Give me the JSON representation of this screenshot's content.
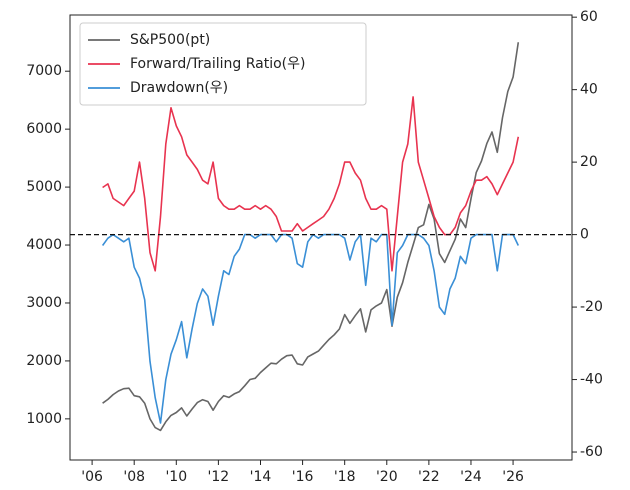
{
  "chart_data": {
    "type": "line",
    "x": [
      2006.5,
      2006.75,
      2007,
      2007.25,
      2007.5,
      2007.75,
      2008,
      2008.25,
      2008.5,
      2008.75,
      2009,
      2009.25,
      2009.5,
      2009.75,
      2010,
      2010.25,
      2010.5,
      2010.75,
      2011,
      2011.25,
      2011.5,
      2011.75,
      2012,
      2012.25,
      2012.5,
      2012.75,
      2013,
      2013.25,
      2013.5,
      2013.75,
      2014,
      2014.25,
      2014.5,
      2014.75,
      2015,
      2015.25,
      2015.5,
      2015.75,
      2016,
      2016.25,
      2016.5,
      2016.75,
      2017,
      2017.25,
      2017.5,
      2017.75,
      2018,
      2018.25,
      2018.5,
      2018.75,
      2019,
      2019.25,
      2019.5,
      2019.75,
      2020,
      2020.25,
      2020.5,
      2020.75,
      2021,
      2021.25,
      2021.5,
      2021.75,
      2022,
      2022.25,
      2022.5,
      2022.75,
      2023,
      2023.25,
      2023.5,
      2023.75,
      2024,
      2024.25,
      2024.5,
      2024.75,
      2025,
      2025.25,
      2025.5,
      2025.75,
      2026,
      2026.25
    ],
    "series": [
      {
        "name": "S&P500(pt)",
        "color": "#666666",
        "values": [
          1270,
          1335,
          1418,
          1480,
          1520,
          1530,
          1400,
          1380,
          1270,
          1000,
          850,
          800,
          950,
          1060,
          1110,
          1190,
          1050,
          1170,
          1280,
          1330,
          1300,
          1150,
          1300,
          1400,
          1370,
          1430,
          1470,
          1570,
          1680,
          1700,
          1800,
          1880,
          1960,
          1950,
          2030,
          2090,
          2100,
          1950,
          1930,
          2070,
          2120,
          2170,
          2270,
          2370,
          2450,
          2550,
          2800,
          2650,
          2780,
          2900,
          2500,
          2880,
          2950,
          3000,
          3230,
          2600,
          3100,
          3350,
          3700,
          4000,
          4300,
          4350,
          4700,
          4450,
          3850,
          3700,
          3900,
          4100,
          4450,
          4300,
          4800,
          5250,
          5450,
          5750,
          5950,
          5600,
          6200,
          6650,
          6900,
          7500
        ]
      },
      {
        "name": "Forward/Trailing Ratio(우)",
        "color": "#e8334f",
        "axis": "y2",
        "values": [
          13,
          14,
          10,
          9,
          8,
          10,
          12,
          20,
          10,
          -5,
          -10,
          5,
          25,
          35,
          30,
          27,
          22,
          20,
          18,
          15,
          14,
          20,
          10,
          8,
          7,
          7,
          8,
          7,
          7,
          8,
          7,
          8,
          7,
          5,
          1,
          1,
          1,
          3,
          1,
          2,
          3,
          4,
          5,
          7,
          10,
          14,
          20,
          20,
          17,
          15,
          10,
          7,
          7,
          8,
          7,
          -10,
          5,
          20,
          25,
          38,
          20,
          15,
          10,
          5,
          2,
          0,
          0,
          2,
          6,
          8,
          12,
          15,
          15,
          16,
          14,
          11,
          14,
          17,
          20,
          27
        ]
      },
      {
        "name": "Drawdown(우)",
        "color": "#3a8fd6",
        "axis": "y2",
        "values": [
          -3,
          -1,
          0,
          -1,
          -2,
          -1,
          -9,
          -12,
          -18,
          -35,
          -45,
          -52,
          -40,
          -33,
          -29,
          -24,
          -34,
          -26,
          -19,
          -15,
          -17,
          -25,
          -17,
          -10,
          -11,
          -6,
          -4,
          0,
          0,
          -1,
          0,
          0,
          0,
          -2,
          0,
          0,
          -1,
          -8,
          -9,
          -2,
          0,
          -1,
          0,
          0,
          0,
          0,
          -1,
          -7,
          -2,
          0,
          -14,
          -1,
          -2,
          0,
          0,
          -25,
          -5,
          -3,
          0,
          0,
          0,
          -1,
          -3,
          -10,
          -20,
          -22,
          -15,
          -12,
          -6,
          -8,
          -1,
          0,
          0,
          0,
          0,
          -10,
          0,
          0,
          0,
          -3
        ]
      }
    ],
    "xlim": [
      2004.95,
      2028.8
    ],
    "xticks": [
      {
        "value": 2006,
        "label": "'06"
      },
      {
        "value": 2008,
        "label": "'08"
      },
      {
        "value": 2010,
        "label": "'10"
      },
      {
        "value": 2012,
        "label": "'12"
      },
      {
        "value": 2014,
        "label": "'14"
      },
      {
        "value": 2016,
        "label": "'16"
      },
      {
        "value": 2018,
        "label": "'18"
      },
      {
        "value": 2020,
        "label": "'20"
      },
      {
        "value": 2022,
        "label": "'22"
      },
      {
        "value": 2024,
        "label": "'24"
      },
      {
        "value": 2026,
        "label": "'26"
      }
    ],
    "ylim": [
      290,
      7970
    ],
    "yticks": [
      1000,
      2000,
      3000,
      4000,
      5000,
      6000,
      7000
    ],
    "y2lim": [
      -62.2,
      60.6
    ],
    "y2ticks": [
      -60,
      -40,
      -20,
      0,
      20,
      40,
      60
    ],
    "y2_reference_line": 0,
    "legend": "upper left"
  }
}
